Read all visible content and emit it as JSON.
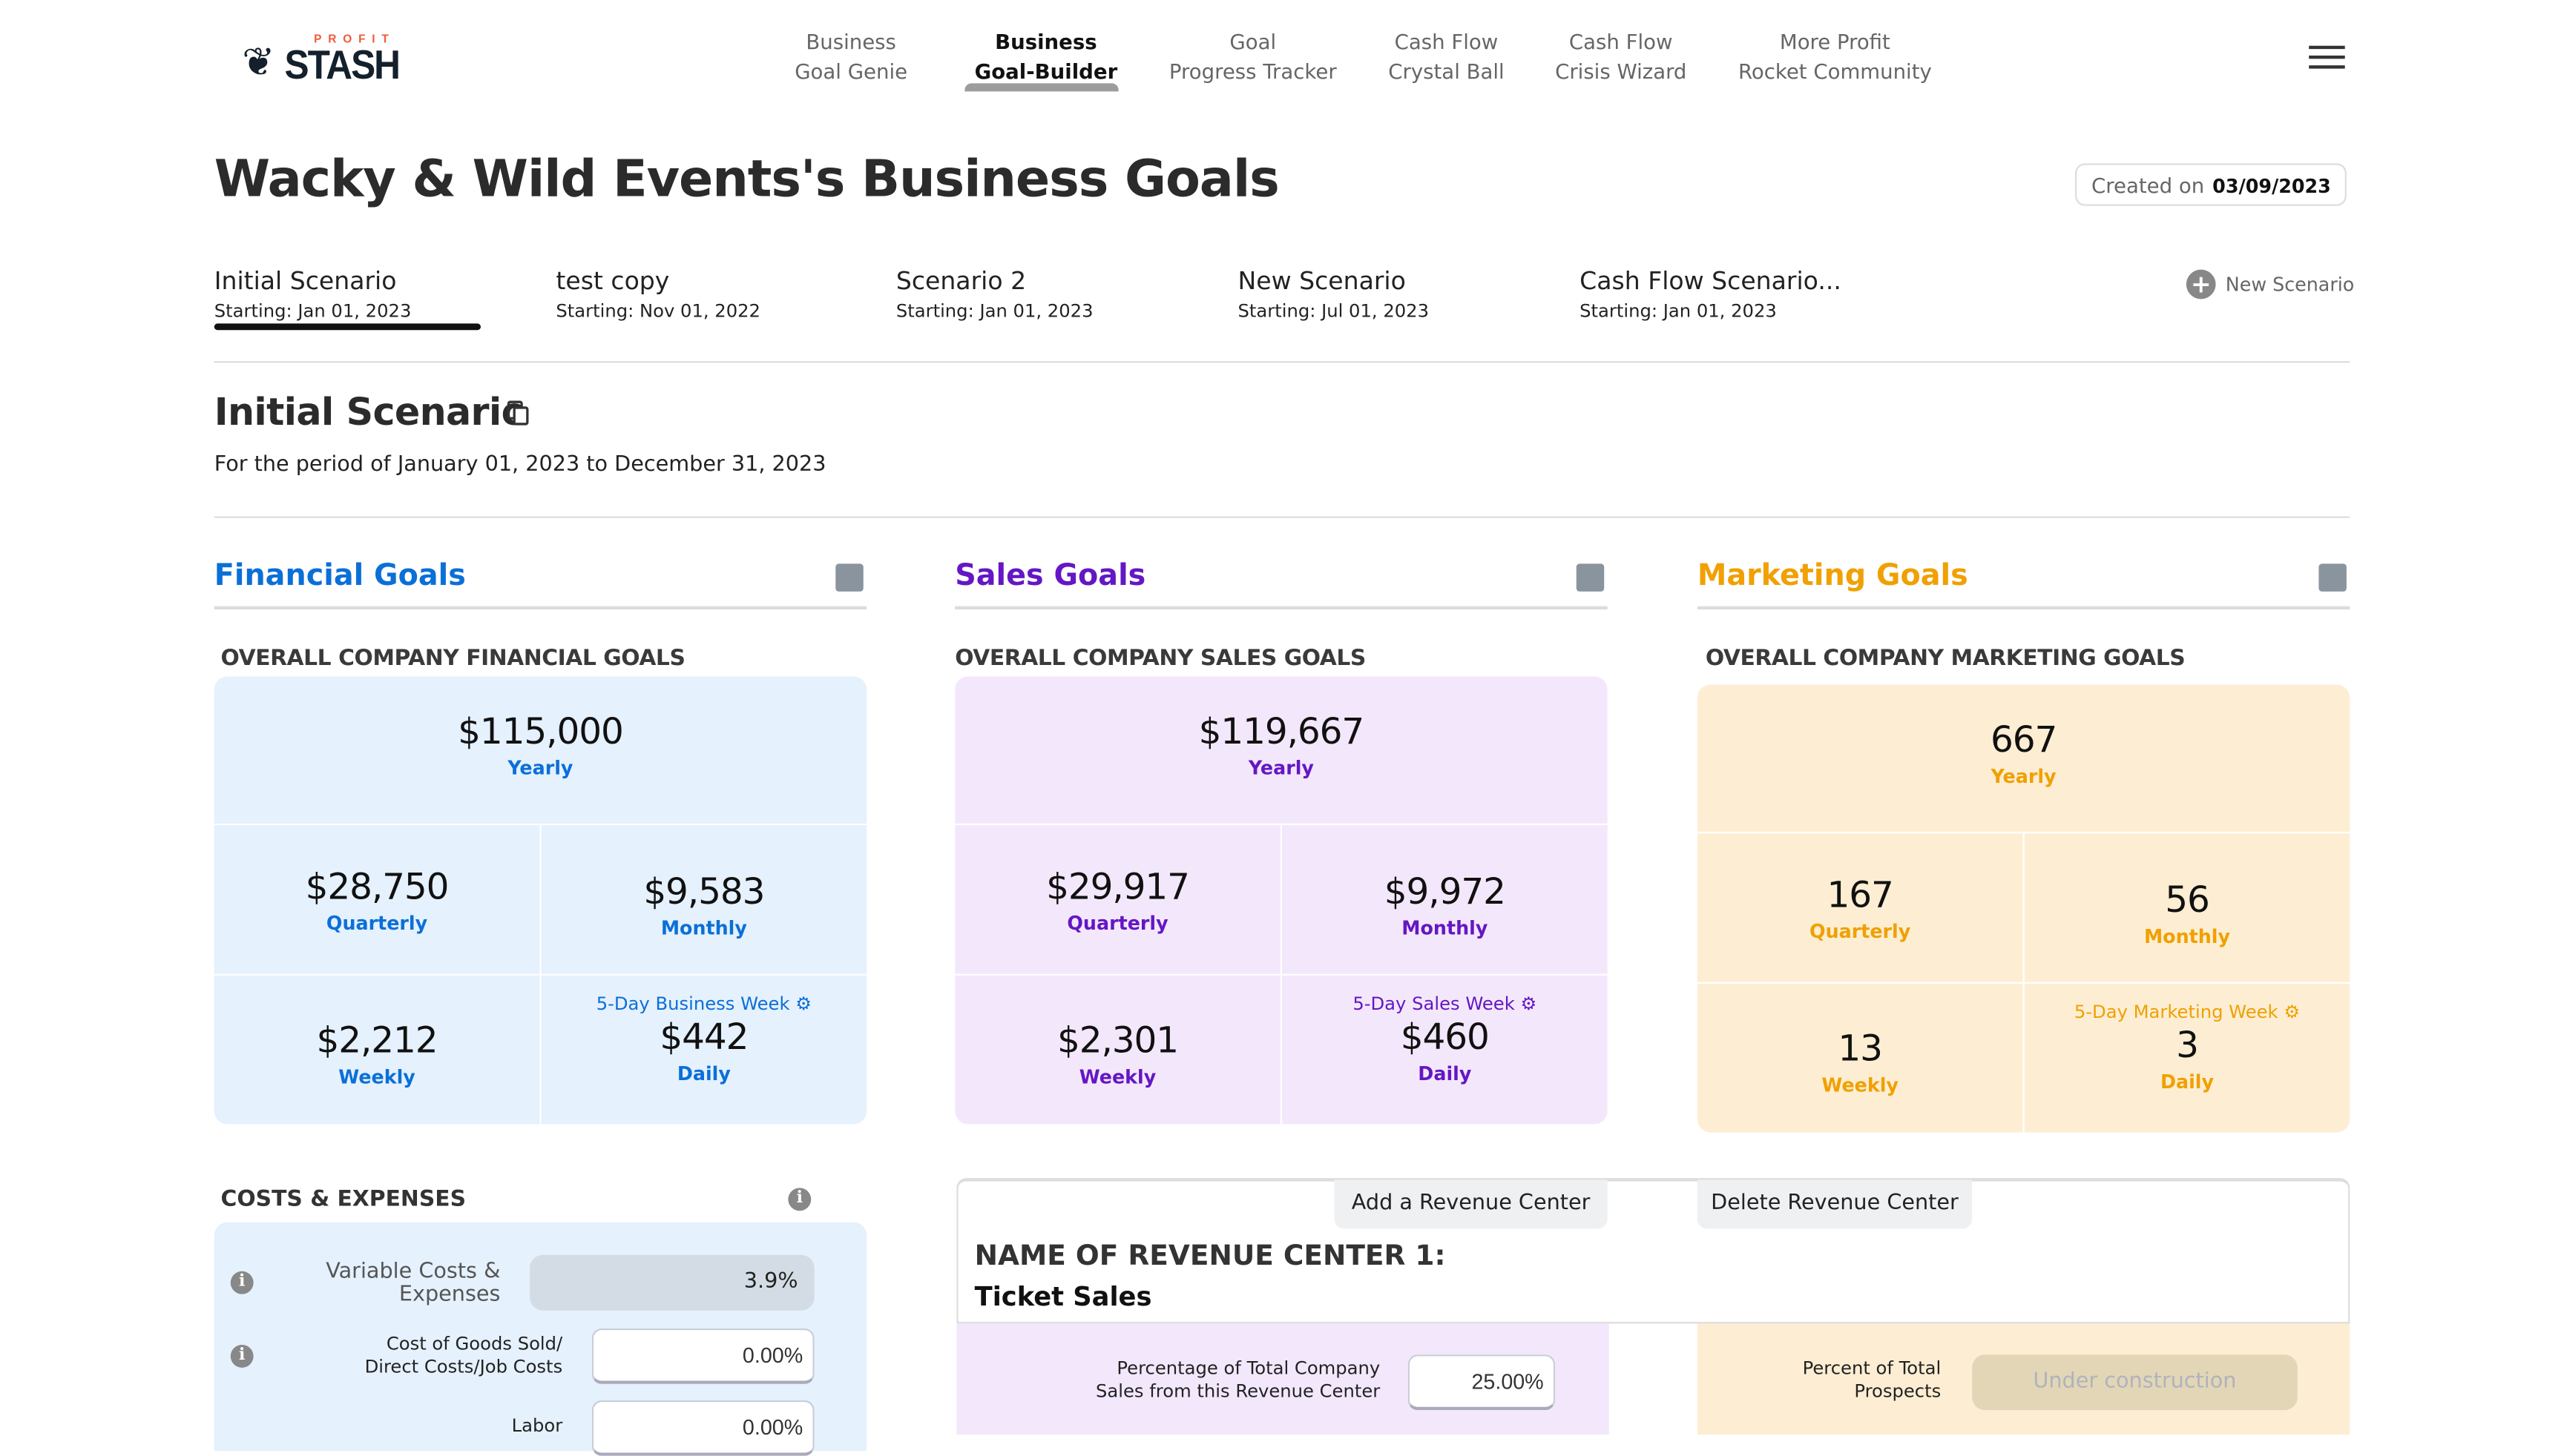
{
  "brand": {
    "logo_top": "PROFIT",
    "logo_main": "STASH"
  },
  "nav": [
    {
      "l1": "Business",
      "l2": "Goal Genie"
    },
    {
      "l1": "Business",
      "l2": "Goal-Builder"
    },
    {
      "l1": "Goal",
      "l2": "Progress Tracker"
    },
    {
      "l1": "Cash Flow",
      "l2": "Crystal Ball"
    },
    {
      "l1": "Cash Flow",
      "l2": "Crisis Wizard"
    },
    {
      "l1": "More Profit",
      "l2": "Rocket Community"
    }
  ],
  "page": {
    "title": "Wacky & Wild Events's Business Goals",
    "created_label": "Created on",
    "created_date": "03/09/2023"
  },
  "scenarios": [
    {
      "name": "Initial Scenario",
      "start": "Starting: Jan 01, 2023"
    },
    {
      "name": "test copy",
      "start": "Starting: Nov 01, 2022"
    },
    {
      "name": "Scenario 2",
      "start": "Starting: Jan 01, 2023"
    },
    {
      "name": "New Scenario",
      "start": "Starting: Jul 01, 2023"
    },
    {
      "name": "Cash Flow Scenario...",
      "start": "Starting: Jan 01, 2023"
    }
  ],
  "new_scenario": "New Scenario",
  "scenario": {
    "title": "Initial Scenario",
    "period": "For the period of January 01, 2023 to December 31, 2023"
  },
  "panels": [
    {
      "title": "Financial Goals",
      "heading": "OVERALL COMPANY FINANCIAL GOALS",
      "color": "#0b6fd8",
      "bg": "#e5f1fd",
      "yearly": "$115,000",
      "yearly_l": "Yearly",
      "quarterly": "$28,750",
      "quarterly_l": "Quarterly",
      "monthly": "$9,583",
      "monthly_l": "Monthly",
      "weekly": "$2,212",
      "weekly_l": "Weekly",
      "week_setting": "5-Day Business Week",
      "daily": "$442",
      "daily_l": "Daily"
    },
    {
      "title": "Sales Goals",
      "heading": "OVERALL COMPANY SALES GOALS",
      "color": "#6417c4",
      "bg": "#f3e8fb",
      "yearly": "$119,667",
      "yearly_l": "Yearly",
      "quarterly": "$29,917",
      "quarterly_l": "Quarterly",
      "monthly": "$9,972",
      "monthly_l": "Monthly",
      "weekly": "$2,301",
      "weekly_l": "Weekly",
      "week_setting": "5-Day Sales Week",
      "daily": "$460",
      "daily_l": "Daily"
    },
    {
      "title": "Marketing Goals",
      "heading": "OVERALL COMPANY MARKETING GOALS",
      "color": "#f0a000",
      "bg": "#fdeed3",
      "yearly": "667",
      "yearly_l": "Yearly",
      "quarterly": "167",
      "quarterly_l": "Quarterly",
      "monthly": "56",
      "monthly_l": "Monthly",
      "weekly": "13",
      "weekly_l": "Weekly",
      "week_setting": "5-Day Marketing Week",
      "daily": "3",
      "daily_l": "Daily"
    }
  ],
  "costs": {
    "title": "COSTS & EXPENSES",
    "variable_label": "Variable Costs & Expenses",
    "variable_value": "3.9%",
    "cogs_label": "Cost of Goods Sold/ Direct Costs/Job Costs",
    "cogs_value": "0.00%",
    "labor_label": "Labor",
    "labor_value": "0.00%"
  },
  "revenue": {
    "add": "Add a Revenue Center",
    "delete": "Delete Revenue Center",
    "name_label": "NAME OF REVENUE CENTER 1:",
    "name": "Ticket Sales",
    "pct_label": "Percentage of Total Company Sales from this Revenue Center",
    "pct_value": "25.00%",
    "prospects_label": "Percent of Total Prospects",
    "prospects_value": "Under construction"
  }
}
